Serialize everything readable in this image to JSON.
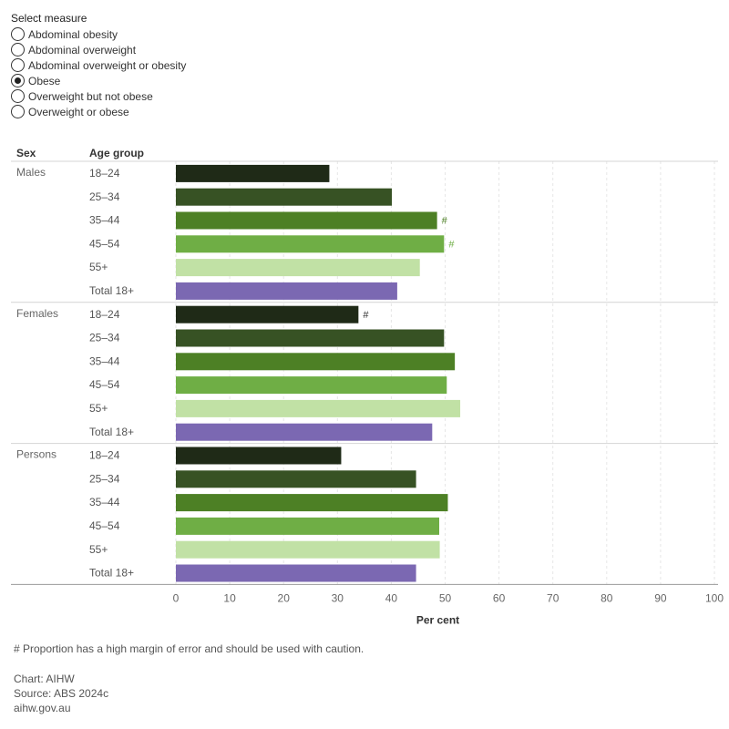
{
  "measure_selector": {
    "title": "Select measure",
    "selected_index": 3,
    "options": [
      "Abdominal obesity",
      "Abdominal overweight",
      "Abdominal overweight or obesity",
      "Obese",
      "Overweight but not obese",
      "Overweight or obese"
    ]
  },
  "chart_data": {
    "type": "bar",
    "orientation": "horizontal",
    "column_headers": {
      "group": "Sex",
      "category": "Age group"
    },
    "xlabel": "Per cent",
    "xlim": [
      0,
      100
    ],
    "xticks": [
      "0",
      "10",
      "20",
      "30",
      "40",
      "50",
      "60",
      "70",
      "80",
      "90",
      "100"
    ],
    "grid": "vertical dashed",
    "groups": [
      {
        "name": "Males",
        "bars": [
          {
            "category": "18–24",
            "value": 28.5,
            "flag": ""
          },
          {
            "category": "25–34",
            "value": 40.1,
            "flag": ""
          },
          {
            "category": "35–44",
            "value": 48.5,
            "flag": "#"
          },
          {
            "category": "45–54",
            "value": 49.8,
            "flag": "#"
          },
          {
            "category": "55+",
            "value": 45.3,
            "flag": ""
          },
          {
            "category": "Total 18+",
            "value": 41.1,
            "flag": ""
          }
        ]
      },
      {
        "name": "Females",
        "bars": [
          {
            "category": "18–24",
            "value": 33.9,
            "flag": "#"
          },
          {
            "category": "25–34",
            "value": 49.8,
            "flag": ""
          },
          {
            "category": "35–44",
            "value": 51.8,
            "flag": ""
          },
          {
            "category": "45–54",
            "value": 50.3,
            "flag": ""
          },
          {
            "category": "55+",
            "value": 52.8,
            "flag": ""
          },
          {
            "category": "Total 18+",
            "value": 47.6,
            "flag": ""
          }
        ]
      },
      {
        "name": "Persons",
        "bars": [
          {
            "category": "18–24",
            "value": 30.7,
            "flag": ""
          },
          {
            "category": "25–34",
            "value": 44.6,
            "flag": ""
          },
          {
            "category": "35–44",
            "value": 50.5,
            "flag": ""
          },
          {
            "category": "45–54",
            "value": 48.9,
            "flag": ""
          },
          {
            "category": "55+",
            "value": 49.0,
            "flag": ""
          },
          {
            "category": "Total 18+",
            "value": 44.6,
            "flag": ""
          }
        ]
      }
    ],
    "category_colors": {
      "18–24": "#1f2a17",
      "25–34": "#375224",
      "35–44": "#4d8025",
      "45–54": "#6fae45",
      "55+": "#c1e1a5",
      "Total 18+": "#7b68b2"
    },
    "flag_colors": {
      "35–44": "#4d8025",
      "45–54": "#6fae45",
      "18–24": "#333333"
    }
  },
  "footer": {
    "note": "# Proportion has a high margin of error and should be used with caution.",
    "credit": "Chart: AIHW",
    "source": "Source: ABS 2024c",
    "website": "aihw.gov.au"
  }
}
